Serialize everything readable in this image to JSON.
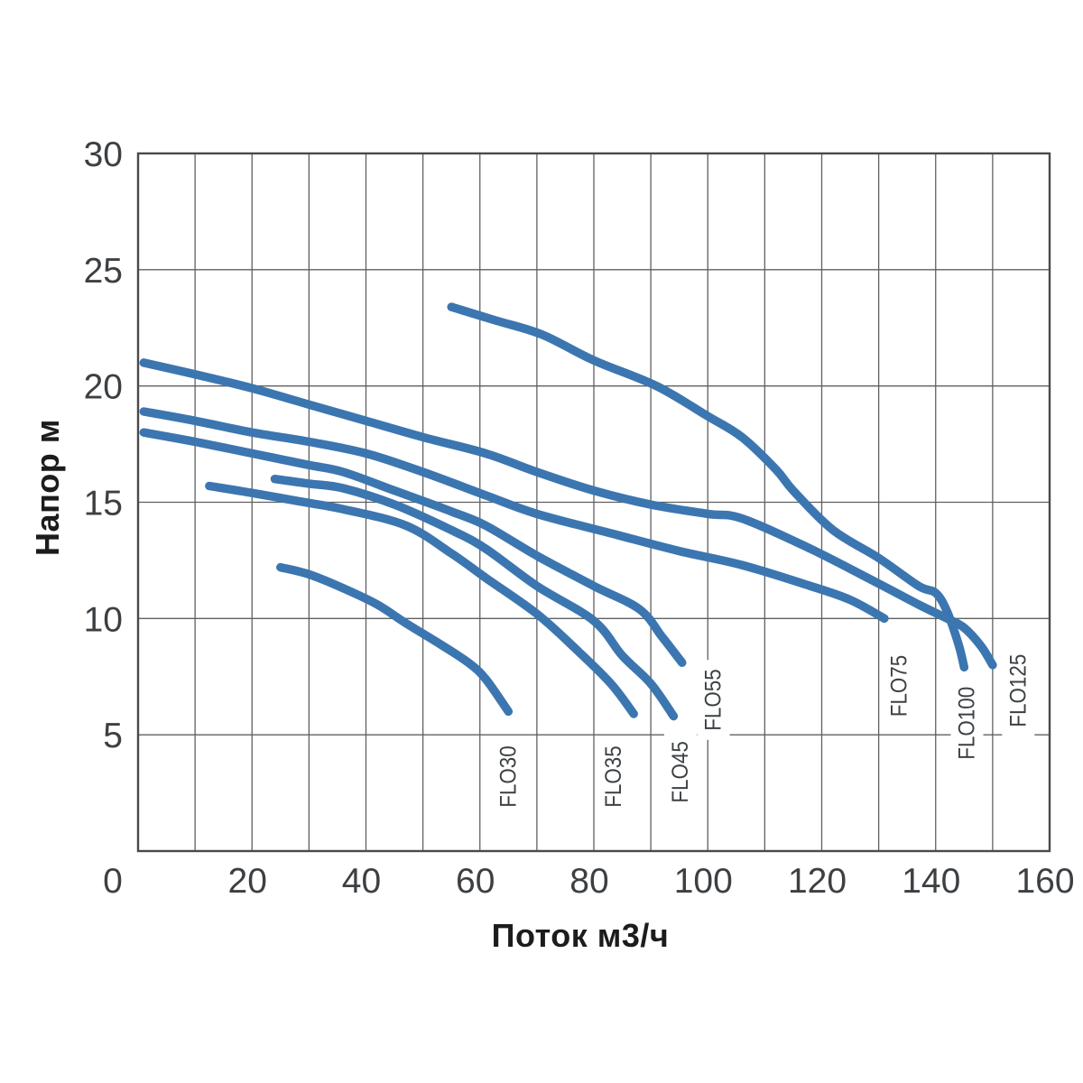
{
  "page": {
    "background": "#ffffff"
  },
  "chart_data": {
    "type": "line",
    "title": "",
    "xlabel": "Поток м3/ч",
    "ylabel": "Напор м",
    "xlim": [
      0,
      160
    ],
    "ylim": [
      0,
      30
    ],
    "x_ticks": [
      0,
      20,
      40,
      60,
      80,
      100,
      120,
      140,
      160
    ],
    "y_ticks": [
      5,
      10,
      15,
      20,
      25,
      30
    ],
    "x_grid_step": 10,
    "y_grid_step": 5,
    "grid": true,
    "legend": "labels-at-curve-ends",
    "colors": {
      "curve": "#3c76b0",
      "grid": "#606060",
      "border": "#4a4a4a",
      "tick_text": "#3d4043",
      "label_text": "#3c4043"
    },
    "series": [
      {
        "name": "FLO30",
        "points": [
          [
            25,
            12.2
          ],
          [
            30,
            11.9
          ],
          [
            36,
            11.3
          ],
          [
            42,
            10.6
          ],
          [
            47,
            9.8
          ],
          [
            53,
            8.9
          ],
          [
            58,
            8.1
          ],
          [
            61,
            7.4
          ],
          [
            65,
            6.0
          ]
        ],
        "label_at": [
          65,
          3.2
        ]
      },
      {
        "name": "FLO35",
        "points": [
          [
            12.5,
            15.7
          ],
          [
            20,
            15.4
          ],
          [
            28,
            15.05
          ],
          [
            36,
            14.7
          ],
          [
            47,
            14.0
          ],
          [
            55,
            12.8
          ],
          [
            61,
            11.75
          ],
          [
            70,
            10.2
          ],
          [
            77,
            8.65
          ],
          [
            83,
            7.2
          ],
          [
            87,
            5.9
          ]
        ],
        "label_at": [
          83.5,
          3.2
        ]
      },
      {
        "name": "FLO45",
        "points": [
          [
            24,
            16.0
          ],
          [
            30,
            15.8
          ],
          [
            36,
            15.6
          ],
          [
            45,
            14.9
          ],
          [
            55,
            13.8
          ],
          [
            61,
            13.0
          ],
          [
            70,
            11.4
          ],
          [
            80,
            9.9
          ],
          [
            85,
            8.4
          ],
          [
            90,
            7.2
          ],
          [
            94,
            5.8
          ]
        ],
        "label_at": [
          95.2,
          3.4
        ]
      },
      {
        "name": "FLO55",
        "points": [
          [
            1,
            18.0
          ],
          [
            10,
            17.6
          ],
          [
            20,
            17.1
          ],
          [
            30,
            16.6
          ],
          [
            36,
            16.3
          ],
          [
            45,
            15.5
          ],
          [
            55,
            14.6
          ],
          [
            61,
            14.0
          ],
          [
            70,
            12.7
          ],
          [
            80,
            11.4
          ],
          [
            88,
            10.4
          ],
          [
            92,
            9.2
          ],
          [
            95.5,
            8.1
          ]
        ],
        "label_at": [
          101,
          6.5
        ]
      },
      {
        "name": "FLO75",
        "points": [
          [
            1,
            18.9
          ],
          [
            10,
            18.5
          ],
          [
            20,
            18.0
          ],
          [
            30,
            17.6
          ],
          [
            40,
            17.1
          ],
          [
            50,
            16.3
          ],
          [
            61,
            15.3
          ],
          [
            70,
            14.5
          ],
          [
            84,
            13.6
          ],
          [
            95,
            12.9
          ],
          [
            106,
            12.3
          ],
          [
            118,
            11.4
          ],
          [
            125,
            10.8
          ],
          [
            131,
            10.0
          ]
        ],
        "label_at": [
          133.6,
          7.1
        ]
      },
      {
        "name": "FLO100",
        "points": [
          [
            55,
            23.4
          ],
          [
            63,
            22.8
          ],
          [
            71,
            22.2
          ],
          [
            80,
            21.1
          ],
          [
            91,
            20.0
          ],
          [
            100,
            18.7
          ],
          [
            106,
            17.8
          ],
          [
            112,
            16.4
          ],
          [
            115,
            15.5
          ],
          [
            122,
            13.8
          ],
          [
            130,
            12.6
          ],
          [
            137,
            11.4
          ],
          [
            140,
            11.1
          ],
          [
            142,
            10.3
          ],
          [
            144,
            8.9
          ],
          [
            145,
            7.9
          ]
        ],
        "label_at": [
          145.5,
          5.5
        ]
      },
      {
        "name": "FLO125",
        "points": [
          [
            1,
            21.0
          ],
          [
            10,
            20.5
          ],
          [
            20,
            19.9
          ],
          [
            30,
            19.2
          ],
          [
            40,
            18.5
          ],
          [
            50,
            17.8
          ],
          [
            61,
            17.1
          ],
          [
            70,
            16.3
          ],
          [
            80,
            15.5
          ],
          [
            90,
            14.9
          ],
          [
            100,
            14.5
          ],
          [
            106,
            14.3
          ],
          [
            118,
            13.0
          ],
          [
            130,
            11.5
          ],
          [
            137,
            10.6
          ],
          [
            142,
            10.0
          ],
          [
            145,
            9.6
          ],
          [
            148,
            8.8
          ],
          [
            150,
            8.0
          ]
        ],
        "label_at": [
          154.5,
          6.9
        ]
      }
    ]
  }
}
